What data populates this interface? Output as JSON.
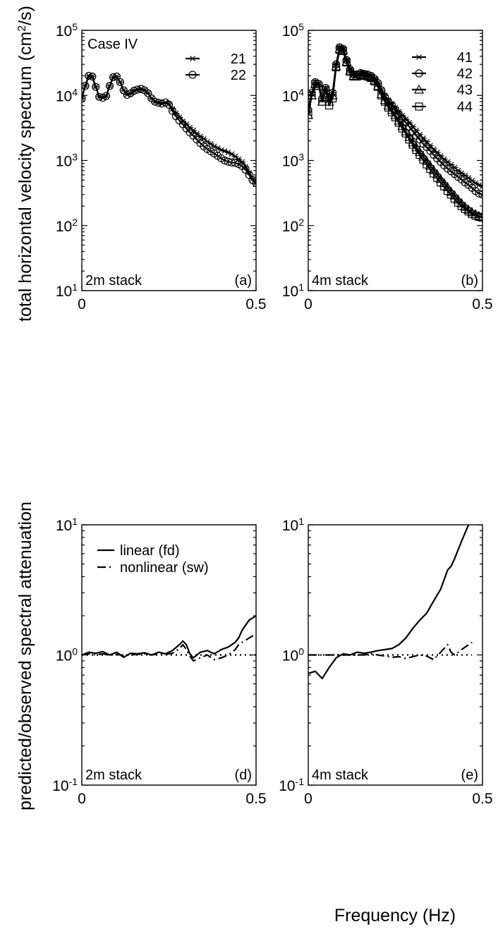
{
  "figure": {
    "xlabel": "Frequency (Hz)",
    "ylabel_top": "total horizontal velocity spectrum (cm²/s)",
    "ylabel_bottom": "predicted/observed spectral attenuation"
  },
  "chart_data": [
    {
      "id": "a",
      "type": "line",
      "panel_label": "(a)",
      "stack_label": "2m stack",
      "title": "Case IV",
      "yscale": "log",
      "xlim": [
        0,
        0.5
      ],
      "ylim": [
        10,
        100000
      ],
      "xticks": [
        "0",
        "0.5"
      ],
      "yticks": [
        "10^1",
        "10^2",
        "10^3",
        "10^4",
        "10^5"
      ],
      "legend_position": "top-right",
      "x": [
        0.0,
        0.01,
        0.02,
        0.03,
        0.04,
        0.05,
        0.06,
        0.07,
        0.08,
        0.09,
        0.1,
        0.11,
        0.12,
        0.13,
        0.14,
        0.15,
        0.16,
        0.17,
        0.18,
        0.19,
        0.2,
        0.21,
        0.22,
        0.23,
        0.24,
        0.25,
        0.26,
        0.27,
        0.28,
        0.29,
        0.3,
        0.31,
        0.32,
        0.33,
        0.34,
        0.35,
        0.36,
        0.37,
        0.38,
        0.39,
        0.4,
        0.41,
        0.42,
        0.43,
        0.44,
        0.45,
        0.46,
        0.47,
        0.48,
        0.49,
        0.5
      ],
      "series": [
        {
          "name": "21",
          "marker": "star",
          "values": [
            9000,
            14000,
            20000,
            19500,
            13500,
            9500,
            9200,
            9800,
            14000,
            19000,
            19500,
            16000,
            12000,
            10200,
            10800,
            11800,
            12300,
            12600,
            12000,
            10800,
            9000,
            8000,
            7700,
            7500,
            7800,
            7400,
            6200,
            5300,
            4600,
            4000,
            3600,
            3200,
            2900,
            2600,
            2350,
            2150,
            1950,
            1800,
            1650,
            1550,
            1450,
            1400,
            1330,
            1250,
            1150,
            1050,
            950,
            800,
            650,
            520,
            450
          ]
        },
        {
          "name": "22",
          "marker": "circle",
          "values": [
            9000,
            14000,
            20000,
            19500,
            13500,
            9500,
            9200,
            9800,
            14000,
            19000,
            19500,
            16000,
            12000,
            10200,
            10800,
            11800,
            12300,
            12600,
            12000,
            10800,
            9000,
            8000,
            7700,
            7500,
            7800,
            7200,
            5800,
            4800,
            4100,
            3600,
            3100,
            2700,
            2400,
            2100,
            1850,
            1650,
            1500,
            1380,
            1280,
            1180,
            1080,
            1000,
            960,
            930,
            920,
            880,
            820,
            720,
            600,
            500,
            450
          ]
        }
      ]
    },
    {
      "id": "b",
      "type": "line",
      "panel_label": "(b)",
      "stack_label": "4m stack",
      "title": "",
      "yscale": "log",
      "xlim": [
        0,
        0.5
      ],
      "ylim": [
        10,
        100000
      ],
      "xticks": [
        "0",
        "0.5"
      ],
      "yticks": [
        "10^1",
        "10^2",
        "10^3",
        "10^4",
        "10^5"
      ],
      "legend_position": "top-right",
      "x": [
        0.0,
        0.01,
        0.02,
        0.03,
        0.04,
        0.05,
        0.06,
        0.07,
        0.08,
        0.09,
        0.1,
        0.11,
        0.12,
        0.13,
        0.14,
        0.15,
        0.16,
        0.17,
        0.18,
        0.19,
        0.2,
        0.21,
        0.22,
        0.23,
        0.24,
        0.25,
        0.26,
        0.27,
        0.28,
        0.29,
        0.3,
        0.31,
        0.32,
        0.33,
        0.34,
        0.35,
        0.36,
        0.37,
        0.38,
        0.39,
        0.4,
        0.41,
        0.42,
        0.43,
        0.44,
        0.45,
        0.46,
        0.47,
        0.48,
        0.49,
        0.5
      ],
      "series": [
        {
          "name": "41",
          "marker": "star",
          "values": [
            6000,
            11000,
            16000,
            15000,
            9000,
            13000,
            9000,
            11000,
            30000,
            55000,
            52000,
            35000,
            25000,
            21000,
            21000,
            22000,
            21500,
            21000,
            20000,
            18000,
            15500,
            12000,
            10000,
            8500,
            7500,
            6500,
            5600,
            4900,
            4300,
            3800,
            3300,
            2900,
            2500,
            2200,
            1950,
            1700,
            1500,
            1330,
            1180,
            1050,
            950,
            860,
            780,
            700,
            640,
            590,
            540,
            490,
            450,
            420,
            400
          ]
        },
        {
          "name": "42",
          "marker": "circle",
          "values": [
            6000,
            11000,
            16000,
            15000,
            9000,
            13000,
            9000,
            11000,
            30000,
            55000,
            52000,
            35000,
            25000,
            21000,
            21000,
            22000,
            21500,
            21000,
            20000,
            18000,
            15500,
            12000,
            9500,
            8000,
            7000,
            6000,
            5100,
            4400,
            3800,
            3300,
            2800,
            2400,
            2100,
            1800,
            1600,
            1400,
            1220,
            1070,
            950,
            840,
            750,
            680,
            620,
            560,
            510,
            460,
            420,
            380,
            340,
            310,
            300
          ]
        },
        {
          "name": "43",
          "marker": "triangle",
          "values": [
            5000,
            10000,
            15000,
            14000,
            8000,
            12000,
            8000,
            10000,
            28000,
            52000,
            50000,
            33000,
            24000,
            20000,
            20000,
            21000,
            20500,
            20000,
            19000,
            17000,
            14000,
            10500,
            8500,
            7000,
            6000,
            5000,
            4100,
            3400,
            2800,
            2300,
            1900,
            1600,
            1350,
            1150,
            980,
            830,
            710,
            610,
            520,
            450,
            390,
            330,
            290,
            250,
            220,
            195,
            175,
            160,
            150,
            140,
            135
          ]
        },
        {
          "name": "44",
          "marker": "square",
          "values": [
            5000,
            10000,
            15000,
            14000,
            8000,
            12000,
            7000,
            9000,
            27000,
            50000,
            48000,
            32000,
            23000,
            19500,
            19500,
            20500,
            20000,
            19500,
            18500,
            16500,
            13500,
            10000,
            8000,
            6500,
            5500,
            4600,
            3800,
            3100,
            2600,
            2100,
            1750,
            1450,
            1220,
            1030,
            870,
            740,
            630,
            540,
            460,
            400,
            340,
            300,
            260,
            225,
            200,
            180,
            165,
            150,
            142,
            136,
            132
          ]
        }
      ]
    },
    {
      "id": "d",
      "type": "line",
      "panel_label": "(d)",
      "stack_label": "2m stack",
      "title": "",
      "yscale": "log",
      "xlim": [
        0,
        0.5
      ],
      "ylim": [
        0.1,
        10
      ],
      "xticks": [
        "0",
        "0.5"
      ],
      "yticks": [
        "10^-1",
        "10^0",
        "10^1"
      ],
      "legend_position": "top-left",
      "x": [
        0.0,
        0.02,
        0.04,
        0.06,
        0.08,
        0.1,
        0.12,
        0.14,
        0.16,
        0.18,
        0.2,
        0.22,
        0.24,
        0.26,
        0.28,
        0.29,
        0.3,
        0.31,
        0.32,
        0.34,
        0.36,
        0.38,
        0.4,
        0.42,
        0.44,
        0.45,
        0.46,
        0.48,
        0.5
      ],
      "series": [
        {
          "name": "linear (fd)",
          "style": "solid",
          "values": [
            1.0,
            1.05,
            1.03,
            1.06,
            1.0,
            1.05,
            0.96,
            1.03,
            1.02,
            1.04,
            1.0,
            1.05,
            1.02,
            1.08,
            1.2,
            1.28,
            1.2,
            1.02,
            0.95,
            1.05,
            1.08,
            1.02,
            1.1,
            1.15,
            1.25,
            1.35,
            1.55,
            1.85,
            2.0
          ]
        },
        {
          "name": "nonlinear (sw)",
          "style": "dashdot",
          "values": [
            1.0,
            1.02,
            1.0,
            1.02,
            1.0,
            1.01,
            0.99,
            1.0,
            1.01,
            1.02,
            1.0,
            1.02,
            1.01,
            1.03,
            1.12,
            1.2,
            1.1,
            0.98,
            0.9,
            0.95,
            1.0,
            0.92,
            0.95,
            1.0,
            1.1,
            1.2,
            1.25,
            1.35,
            1.45
          ]
        },
        {
          "name": "",
          "style": "dotted",
          "values": [
            1,
            1,
            1,
            1,
            1,
            1,
            1,
            1,
            1,
            1,
            1,
            1,
            1,
            1,
            1,
            1,
            1,
            1,
            1,
            1,
            1,
            1,
            1,
            1,
            1,
            1,
            1,
            1,
            1
          ]
        }
      ]
    },
    {
      "id": "e",
      "type": "line",
      "panel_label": "(e)",
      "stack_label": "4m stack",
      "title": "",
      "yscale": "log",
      "xlim": [
        0,
        0.5
      ],
      "ylim": [
        0.1,
        10
      ],
      "xticks": [
        "0",
        "0.5"
      ],
      "yticks": [
        "10^-1",
        "10^0",
        "10^1"
      ],
      "legend_position": "",
      "x": [
        0.0,
        0.02,
        0.04,
        0.06,
        0.08,
        0.1,
        0.12,
        0.14,
        0.16,
        0.18,
        0.2,
        0.22,
        0.24,
        0.26,
        0.28,
        0.3,
        0.32,
        0.34,
        0.36,
        0.38,
        0.4,
        0.41,
        0.42,
        0.44,
        0.46,
        0.47
      ],
      "series": [
        {
          "name": "linear (fd)",
          "style": "solid",
          "values": [
            0.72,
            0.75,
            0.66,
            0.8,
            0.95,
            1.02,
            1.0,
            1.05,
            1.03,
            1.05,
            1.08,
            1.1,
            1.12,
            1.2,
            1.35,
            1.6,
            1.85,
            2.1,
            2.6,
            3.2,
            4.5,
            4.8,
            5.5,
            7.5,
            10.0,
            11.0
          ]
        },
        {
          "name": "nonlinear (sw)",
          "style": "dashdot",
          "values": [
            1.0,
            1.0,
            1.0,
            1.0,
            1.0,
            1.0,
            1.0,
            1.0,
            1.0,
            1.02,
            1.0,
            0.98,
            0.96,
            0.97,
            0.94,
            0.97,
            1.0,
            0.98,
            0.92,
            1.05,
            1.2,
            1.05,
            1.0,
            1.1,
            1.2,
            1.25
          ]
        },
        {
          "name": "",
          "style": "dotted",
          "values": [
            1,
            1,
            1,
            1,
            1,
            1,
            1,
            1,
            1,
            1,
            1,
            1,
            1,
            1,
            1,
            1,
            1,
            1,
            1,
            1,
            1,
            1,
            1,
            1,
            1,
            1
          ]
        }
      ]
    }
  ]
}
